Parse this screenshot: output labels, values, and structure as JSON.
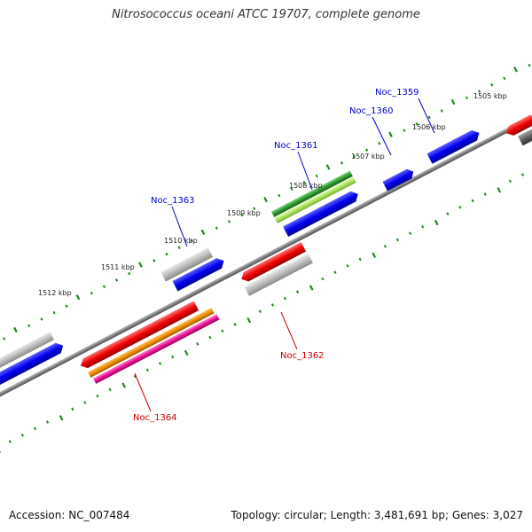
{
  "title": "Nitrosococcus oceani ATCC 19707, complete genome",
  "footer": {
    "accession": "Accession: NC_007484",
    "topology": "Topology: circular; Length: 3,481,691 bp; Genes: 3,027"
  },
  "colors": {
    "backbone": "#808080",
    "tick": "#1a8a1a",
    "forward_label": "#0000cc",
    "reverse_label": "#cc0000",
    "blue": "#0000ee",
    "red": "#ee0000",
    "grey": "#b8b8b8",
    "dark_grey": "#606060",
    "green": "#2e9a2e",
    "light_green": "#a8e060",
    "orange": "#f08c00",
    "magenta": "#ee1199"
  },
  "kbp_labels": [
    "1505 kbp",
    "1506 kbp",
    "1507 kbp",
    "1508 kbp",
    "1509 kbp",
    "1510 kbp",
    "1511 kbp",
    "1512 kbp"
  ],
  "gene_labels": {
    "noc_1359": "Noc_1359",
    "noc_1360": "Noc_1360",
    "noc_1361": "Noc_1361",
    "noc_1362": "Noc_1362",
    "noc_1363": "Noc_1363",
    "noc_1364": "Noc_1364"
  }
}
